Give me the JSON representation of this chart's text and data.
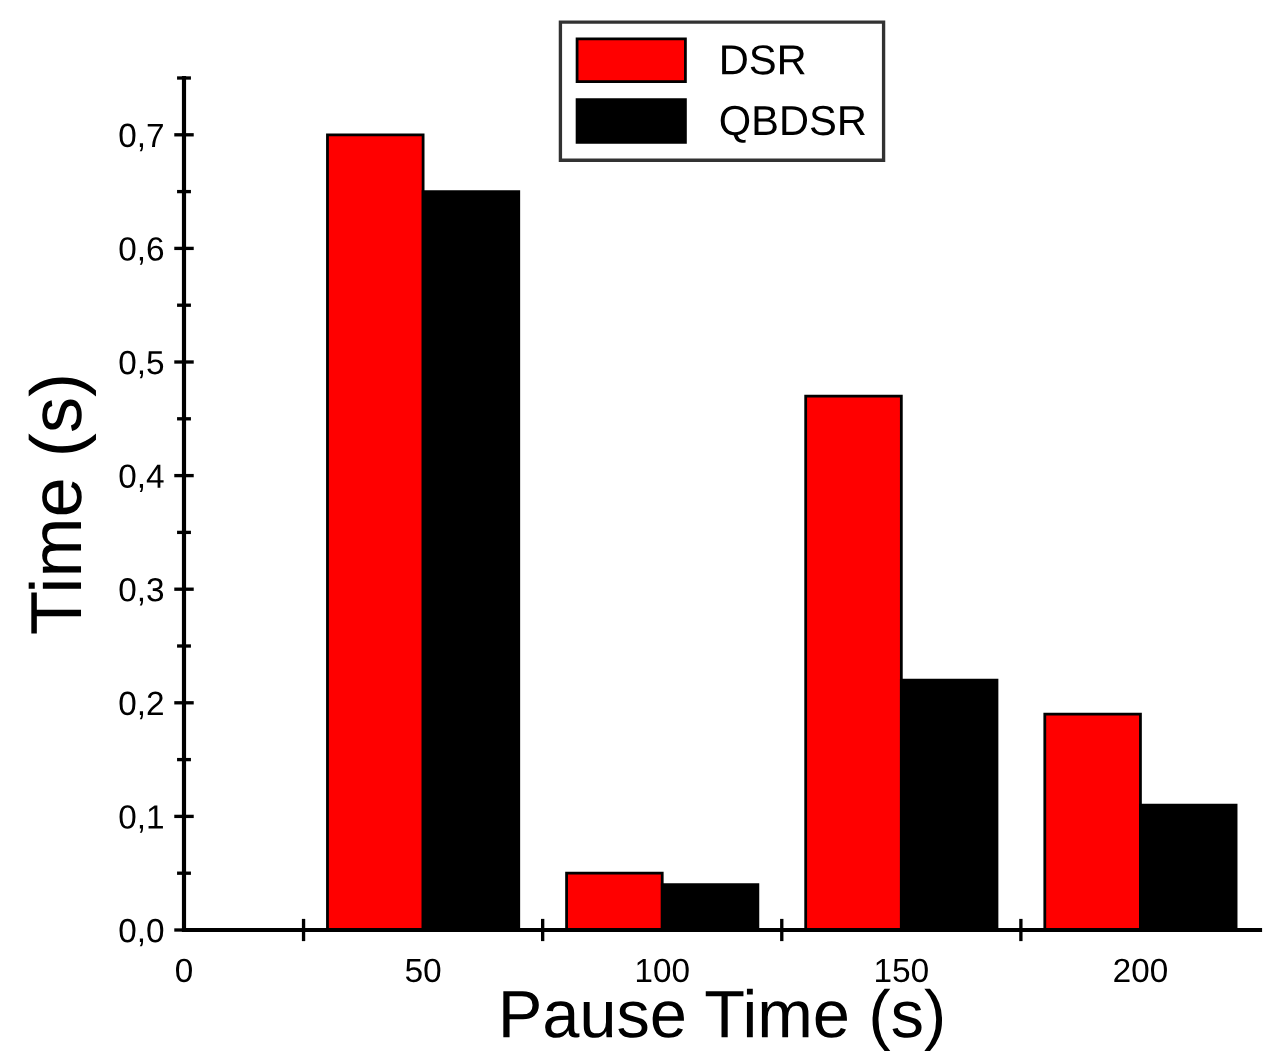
{
  "chart_data": {
    "type": "bar",
    "xlabel": "Pause Time (s)",
    "ylabel": "Time (s)",
    "categories": [
      "0",
      "50",
      "100",
      "150",
      "200"
    ],
    "series": [
      {
        "name": "DSR",
        "color": "#ff0000",
        "values": [
          null,
          0.7,
          0.05,
          0.47,
          0.19
        ]
      },
      {
        "name": "QBDSR",
        "color": "#000000",
        "values": [
          null,
          0.65,
          0.04,
          0.22,
          0.11
        ]
      }
    ],
    "ylim": [
      0,
      0.75
    ],
    "yticks": [
      {
        "value": 0,
        "label": "0,0"
      },
      {
        "value": 0.1,
        "label": "0,1"
      },
      {
        "value": 0.2,
        "label": "0,2"
      },
      {
        "value": 0.3,
        "label": "0,3"
      },
      {
        "value": 0.4,
        "label": "0,4"
      },
      {
        "value": 0.5,
        "label": "0,5"
      },
      {
        "value": 0.6,
        "label": "0,6"
      },
      {
        "value": 0.7,
        "label": "0,7"
      }
    ],
    "grid": false,
    "legend": "top"
  }
}
